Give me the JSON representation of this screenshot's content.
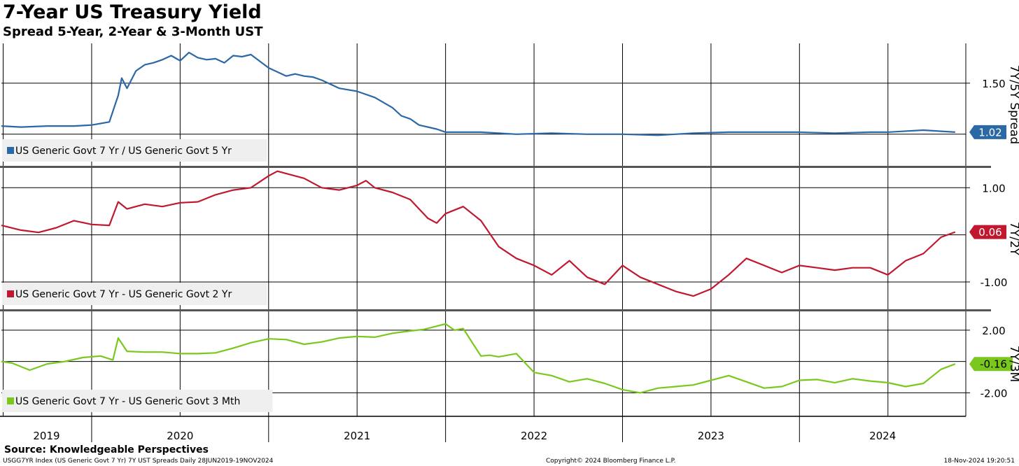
{
  "title": "7-Year US Treasury Yield",
  "subtitle": "Spread 5-Year, 2-Year & 3-Month UST",
  "source": "Source: Knowledgeable Perspectives",
  "footer": {
    "left": "USGG7YR Index (US Generic Govt 7 Yr) 7Y UST Spreads  Daily 28JUN2019-19NOV2024",
    "center": "Copyright© 2024 Bloomberg Finance L.P.",
    "right": "18-Nov-2024 19:20:51"
  },
  "chart_data": [
    {
      "type": "line",
      "axis_title": "7Y/5Y Spread",
      "yticks": [
        1.5
      ],
      "tick_labels": [
        "1.50"
      ],
      "ylim": [
        0.69,
        1.89
      ],
      "grid": true,
      "legend_position": "bottom-left",
      "last_value": "1.02",
      "series": [
        {
          "name": "US Generic Govt 7 Yr / US Generic Govt 5 Yr",
          "color": "#2a68a6",
          "x": [
            2019.49,
            2019.6,
            2019.75,
            2019.9,
            2020.0,
            2020.1,
            2020.15,
            2020.17,
            2020.2,
            2020.25,
            2020.3,
            2020.35,
            2020.4,
            2020.45,
            2020.5,
            2020.55,
            2020.6,
            2020.65,
            2020.7,
            2020.75,
            2020.8,
            2020.85,
            2020.9,
            2021.0,
            2021.1,
            2021.15,
            2021.2,
            2021.25,
            2021.3,
            2021.4,
            2021.5,
            2021.6,
            2021.7,
            2021.75,
            2021.8,
            2021.85,
            2021.95,
            2022.0,
            2022.2,
            2022.4,
            2022.6,
            2022.8,
            2023.0,
            2023.2,
            2023.4,
            2023.6,
            2023.8,
            2024.0,
            2024.2,
            2024.4,
            2024.5,
            2024.7,
            2024.88
          ],
          "y": [
            1.08,
            1.07,
            1.08,
            1.08,
            1.09,
            1.12,
            1.38,
            1.55,
            1.45,
            1.62,
            1.68,
            1.7,
            1.73,
            1.77,
            1.72,
            1.8,
            1.75,
            1.73,
            1.74,
            1.7,
            1.77,
            1.76,
            1.78,
            1.65,
            1.57,
            1.59,
            1.57,
            1.56,
            1.53,
            1.45,
            1.42,
            1.36,
            1.26,
            1.18,
            1.15,
            1.09,
            1.05,
            1.02,
            1.02,
            1.0,
            1.01,
            1.0,
            1.0,
            0.99,
            1.01,
            1.02,
            1.02,
            1.02,
            1.01,
            1.02,
            1.02,
            1.04,
            1.02
          ]
        }
      ]
    },
    {
      "type": "line",
      "axis_title": "7Y/2Y",
      "yticks": [
        1.0,
        -1.0
      ],
      "tick_labels": [
        "1.00",
        "-1.00"
      ],
      "ylim": [
        -1.58,
        1.42
      ],
      "grid": true,
      "legend_position": "bottom-left",
      "last_value": "0.06",
      "series": [
        {
          "name": "US Generic Govt 7 Yr - US Generic Govt 2 Yr",
          "color": "#c0182f",
          "x": [
            2019.49,
            2019.6,
            2019.7,
            2019.8,
            2019.9,
            2020.0,
            2020.1,
            2020.15,
            2020.2,
            2020.3,
            2020.4,
            2020.5,
            2020.6,
            2020.7,
            2020.8,
            2020.9,
            2021.0,
            2021.05,
            2021.1,
            2021.2,
            2021.3,
            2021.4,
            2021.5,
            2021.55,
            2021.6,
            2021.7,
            2021.8,
            2021.9,
            2021.95,
            2022.0,
            2022.1,
            2022.2,
            2022.3,
            2022.4,
            2022.5,
            2022.6,
            2022.7,
            2022.8,
            2022.9,
            2023.0,
            2023.1,
            2023.2,
            2023.3,
            2023.4,
            2023.5,
            2023.6,
            2023.7,
            2023.8,
            2023.9,
            2024.0,
            2024.1,
            2024.2,
            2024.3,
            2024.4,
            2024.5,
            2024.6,
            2024.7,
            2024.8,
            2024.88
          ],
          "y": [
            0.2,
            0.1,
            0.05,
            0.15,
            0.3,
            0.22,
            0.2,
            0.7,
            0.55,
            0.65,
            0.6,
            0.68,
            0.7,
            0.85,
            0.95,
            1.0,
            1.25,
            1.35,
            1.3,
            1.2,
            1.0,
            0.95,
            1.05,
            1.15,
            1.0,
            0.9,
            0.75,
            0.35,
            0.25,
            0.45,
            0.6,
            0.3,
            -0.25,
            -0.5,
            -0.65,
            -0.85,
            -0.55,
            -0.9,
            -1.05,
            -0.65,
            -0.9,
            -1.05,
            -1.2,
            -1.3,
            -1.15,
            -0.85,
            -0.5,
            -0.65,
            -0.8,
            -0.65,
            -0.7,
            -0.75,
            -0.7,
            -0.7,
            -0.85,
            -0.55,
            -0.4,
            -0.05,
            0.06
          ]
        }
      ]
    },
    {
      "type": "line",
      "axis_title": "7Y/3M",
      "yticks": [
        2.0,
        -2.0
      ],
      "tick_labels": [
        "2.00",
        "-2.00"
      ],
      "ylim": [
        -3.5,
        3.2
      ],
      "grid": true,
      "legend_position": "bottom-left",
      "last_value": "-0.16",
      "series": [
        {
          "name": "US Generic Govt 7 Yr - US Generic Govt 3 Mth",
          "color": "#7ac81e",
          "x": [
            2019.49,
            2019.55,
            2019.65,
            2019.75,
            2019.85,
            2019.95,
            2020.05,
            2020.12,
            2020.15,
            2020.2,
            2020.3,
            2020.4,
            2020.5,
            2020.6,
            2020.7,
            2020.8,
            2020.9,
            2021.0,
            2021.1,
            2021.2,
            2021.3,
            2021.4,
            2021.5,
            2021.6,
            2021.7,
            2021.8,
            2021.88,
            2021.93,
            2022.0,
            2022.05,
            2022.1,
            2022.2,
            2022.25,
            2022.3,
            2022.4,
            2022.5,
            2022.6,
            2022.7,
            2022.8,
            2022.9,
            2023.0,
            2023.1,
            2023.2,
            2023.3,
            2023.4,
            2023.5,
            2023.6,
            2023.7,
            2023.8,
            2023.9,
            2024.0,
            2024.1,
            2024.2,
            2024.3,
            2024.4,
            2024.5,
            2024.6,
            2024.7,
            2024.8,
            2024.88
          ],
          "y": [
            0.0,
            -0.1,
            -0.55,
            -0.15,
            0.0,
            0.25,
            0.35,
            0.1,
            1.5,
            0.65,
            0.6,
            0.6,
            0.5,
            0.5,
            0.55,
            0.85,
            1.2,
            1.45,
            1.4,
            1.1,
            1.25,
            1.5,
            1.6,
            1.55,
            1.8,
            1.95,
            2.05,
            2.2,
            2.4,
            2.0,
            2.1,
            0.35,
            0.4,
            0.3,
            0.5,
            -0.7,
            -0.9,
            -1.3,
            -1.1,
            -1.4,
            -1.8,
            -2.0,
            -1.7,
            -1.6,
            -1.5,
            -1.2,
            -0.9,
            -1.3,
            -1.7,
            -1.6,
            -1.2,
            -1.15,
            -1.35,
            -1.1,
            -1.25,
            -1.35,
            -1.6,
            -1.4,
            -0.5,
            -0.16
          ]
        }
      ]
    }
  ],
  "x_axis": {
    "year_labels": [
      "2019",
      "2020",
      "2021",
      "2022",
      "2023",
      "2024"
    ],
    "range": [
      2019.49,
      2024.94
    ]
  }
}
